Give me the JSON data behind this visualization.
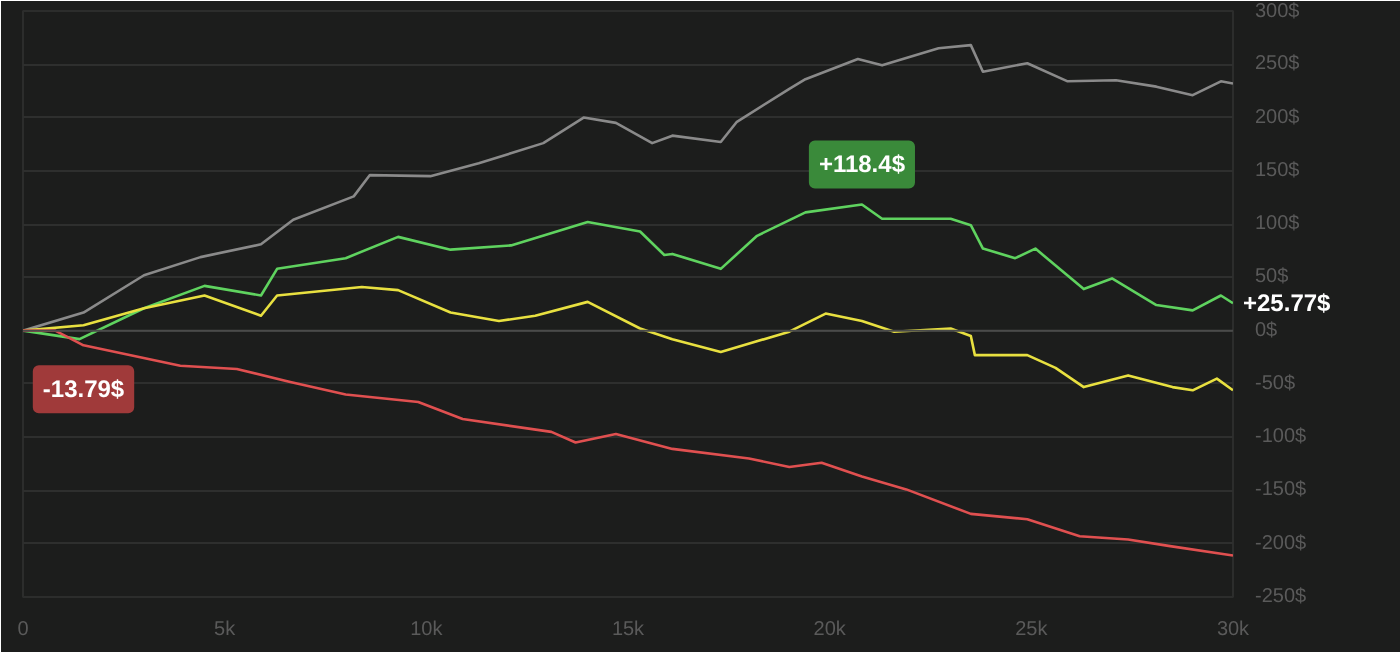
{
  "chart_data": {
    "type": "line",
    "x": [
      0,
      1500,
      3000,
      4400,
      5900,
      6700,
      8200,
      8600,
      10100,
      11300,
      12900,
      13900,
      14700,
      15600,
      16100,
      17300,
      17700,
      19000,
      19400,
      20700,
      21300,
      22700,
      23500,
      23800,
      24900,
      25900,
      27100,
      28100,
      29000,
      29700,
      30000
    ],
    "series": [
      {
        "color": "#8a8a8a",
        "values": [
          0,
          17,
          52,
          69,
          81,
          104,
          126,
          146,
          145,
          157,
          176,
          200,
          195,
          176,
          183,
          177,
          196,
          227,
          236,
          255,
          249,
          265,
          268,
          243,
          251,
          234,
          235,
          229,
          221,
          234,
          232
        ]
      },
      {
        "color": "#5fd35f",
        "x": [
          0,
          1400,
          3000,
          4500,
          5900,
          6300,
          8000,
          9300,
          10600,
          12100,
          14000,
          15300,
          15900,
          16100,
          17300,
          18200,
          19400,
          20800,
          21300,
          23000,
          23500,
          23800,
          24600,
          25100,
          26300,
          27000,
          28100,
          29000,
          29700,
          30000
        ],
        "values": [
          0,
          -8,
          21,
          42,
          33,
          58,
          68,
          88,
          76,
          80,
          102,
          93,
          71,
          72,
          58,
          89,
          111,
          118.4,
          105,
          105,
          99,
          77,
          68,
          77,
          39,
          49,
          24,
          19,
          33,
          25.77
        ]
      },
      {
        "color": "#e8e040",
        "x": [
          0,
          1500,
          3000,
          4500,
          5900,
          6300,
          8400,
          9300,
          10600,
          11800,
          12700,
          14000,
          15300,
          16100,
          17300,
          19000,
          19900,
          20800,
          21600,
          23000,
          23500,
          23600,
          24900,
          25600,
          26300,
          27400,
          28500,
          29000,
          29600,
          30000
        ],
        "values": [
          0,
          5,
          21,
          33,
          14,
          33,
          41,
          38,
          17,
          9,
          14,
          27,
          2,
          -8,
          -20,
          -1,
          16,
          9,
          -1,
          2,
          -5,
          -23,
          -23,
          -35,
          -53,
          -42,
          -53,
          -56,
          -45,
          -56
        ]
      },
      {
        "color": "#e05050",
        "x": [
          0,
          800,
          1500,
          3900,
          5300,
          6600,
          8000,
          9800,
          10900,
          13100,
          13700,
          14700,
          16100,
          18000,
          19000,
          19800,
          20800,
          21900,
          23500,
          24900,
          26200,
          27400,
          28400,
          30000
        ],
        "values": [
          0,
          0,
          -13.79,
          -33,
          -36,
          -48,
          -60,
          -67,
          -83,
          -95,
          -105,
          -97,
          -111,
          -120,
          -128,
          -124,
          -137,
          -149,
          -172,
          -177,
          -193,
          -196,
          -202,
          -211
        ]
      }
    ],
    "xlim": [
      0,
      30000
    ],
    "ylim": [
      -250,
      300
    ],
    "xticks": [
      {
        "value": 0,
        "label": "0"
      },
      {
        "value": 5000,
        "label": "5k"
      },
      {
        "value": 10000,
        "label": "10k"
      },
      {
        "value": 15000,
        "label": "15k"
      },
      {
        "value": 20000,
        "label": "20k"
      },
      {
        "value": 25000,
        "label": "25k"
      },
      {
        "value": 30000,
        "label": "30k"
      }
    ],
    "yticks": [
      {
        "value": -250,
        "label": "-250$"
      },
      {
        "value": -200,
        "label": "-200$"
      },
      {
        "value": -150,
        "label": "-150$"
      },
      {
        "value": -100,
        "label": "-100$"
      },
      {
        "value": -50,
        "label": "-50$"
      },
      {
        "value": 0,
        "label": "0$"
      },
      {
        "value": 50,
        "label": "50$"
      },
      {
        "value": 100,
        "label": "100$"
      },
      {
        "value": 150,
        "label": "150$"
      },
      {
        "value": 200,
        "label": "200$"
      },
      {
        "value": 250,
        "label": "250$"
      },
      {
        "value": 300,
        "label": "300$"
      }
    ],
    "grid": "y",
    "marker": "none",
    "line_style": "solid",
    "annotations": [
      {
        "text": "+118.4$",
        "x": 20800,
        "y": 118.4
      },
      {
        "text": "-13.79$",
        "x": 1500,
        "y": -13.79
      },
      {
        "text": "+25.77$",
        "x": 30000,
        "y": 25.77
      }
    ]
  }
}
